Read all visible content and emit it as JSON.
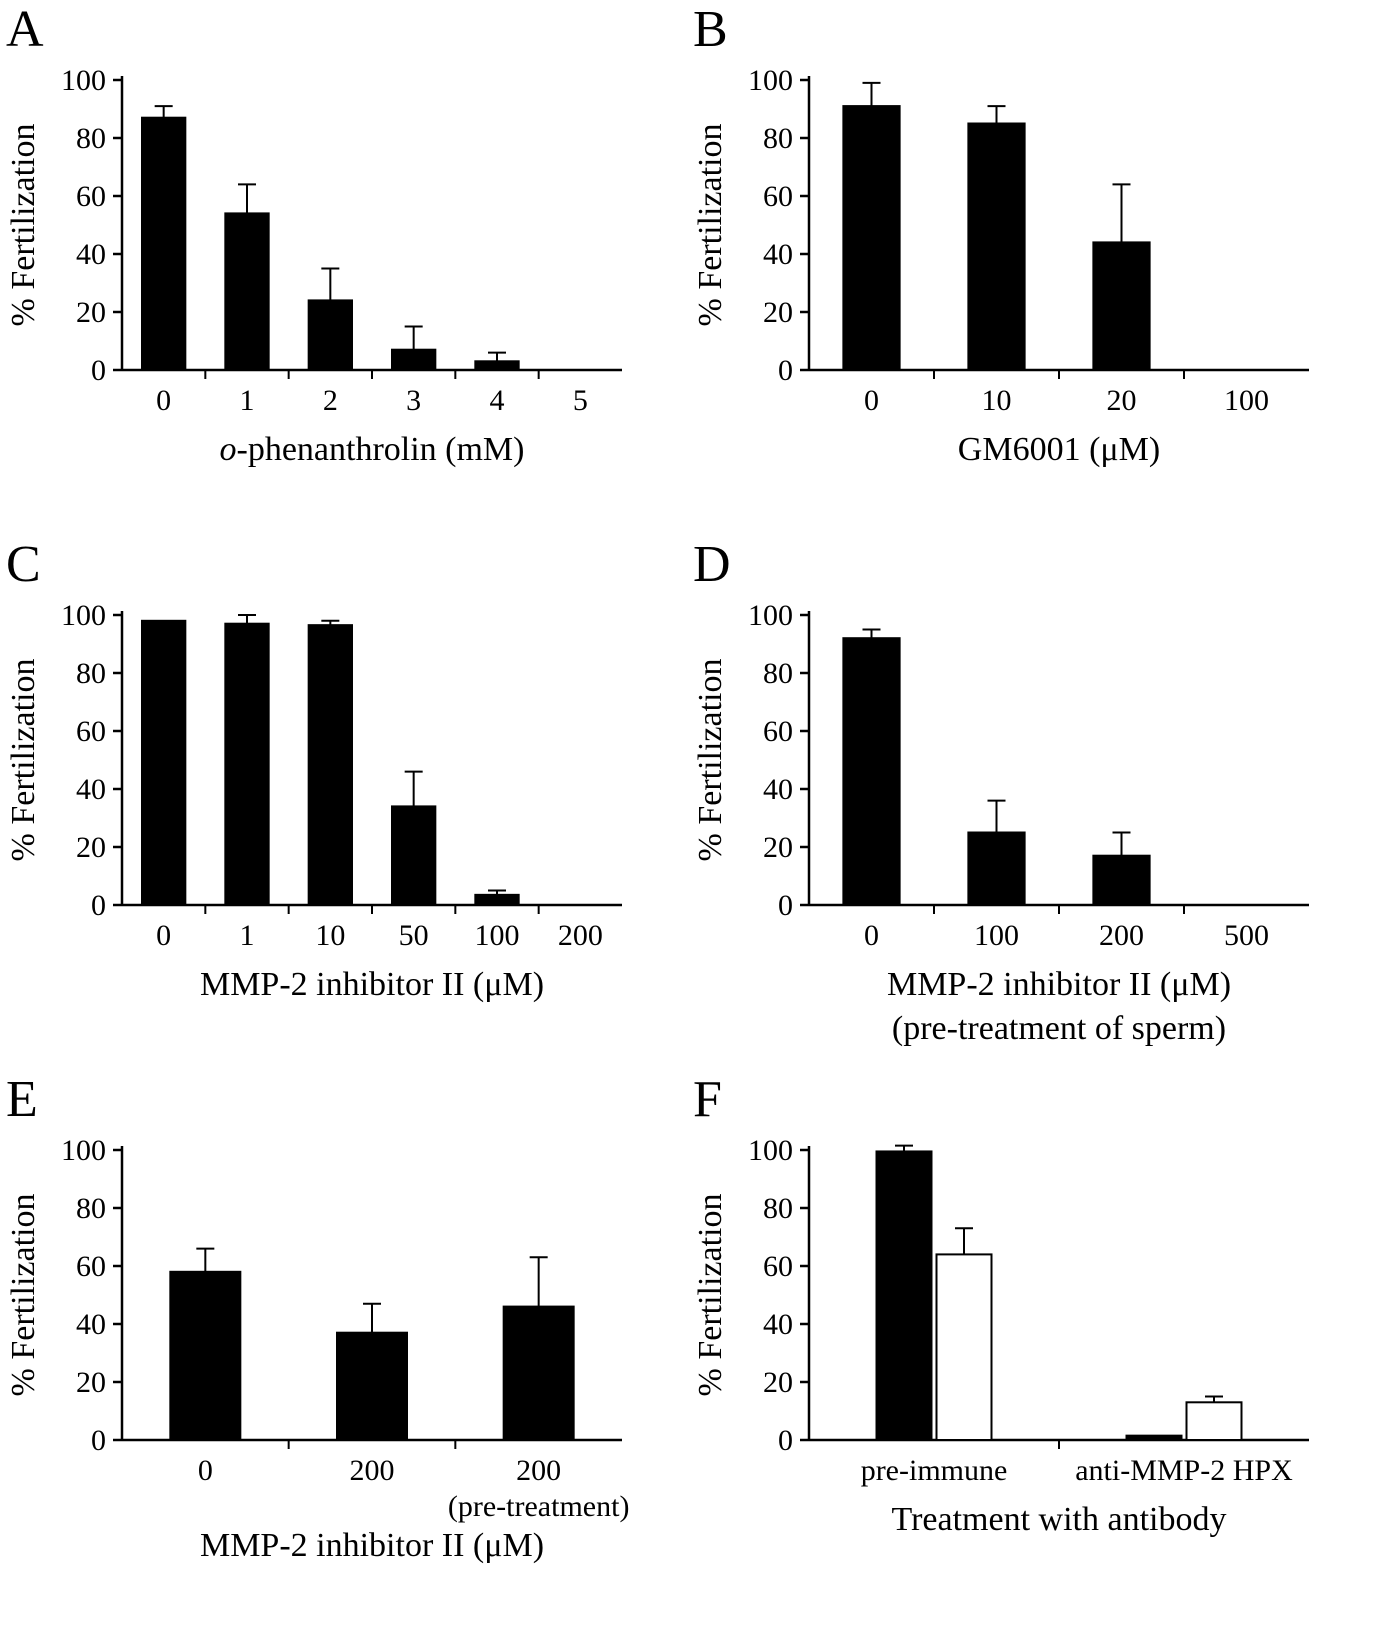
{
  "figure_title": "",
  "colors": {
    "bar_black": "#000000",
    "bar_white": "#ffffff",
    "axis": "#000000",
    "background": "#ffffff"
  },
  "chart_data": [
    {
      "id": "A",
      "panel_label": "A",
      "type": "bar",
      "categories": [
        "0",
        "1",
        "2",
        "3",
        "4",
        "5"
      ],
      "values": [
        87,
        54,
        24,
        7,
        3,
        0
      ],
      "errors": [
        4,
        10,
        11,
        8,
        3,
        0
      ],
      "xlabel": "o-phenanthrolin (mM)",
      "xlabel_parts": [
        {
          "text": "o",
          "italic": true
        },
        {
          "text": "-phenanthrolin (mM)",
          "italic": false
        }
      ],
      "ylabel": "% Fertilization",
      "ylim": [
        0,
        100
      ],
      "yticks": [
        0,
        20,
        40,
        60,
        80,
        100
      ],
      "bar_color": "#000000",
      "bar_frac": 0.52,
      "legend": "none",
      "grid": false
    },
    {
      "id": "B",
      "panel_label": "B",
      "type": "bar",
      "categories": [
        "0",
        "10",
        "20",
        "100"
      ],
      "values": [
        91,
        85,
        44,
        0
      ],
      "errors": [
        8,
        6,
        20,
        0
      ],
      "xlabel": "GM6001 (μM)",
      "ylabel": "% Fertilization",
      "ylim": [
        0,
        100
      ],
      "yticks": [
        0,
        20,
        40,
        60,
        80,
        100
      ],
      "bar_color": "#000000",
      "bar_frac": 0.45,
      "legend": "none",
      "grid": false
    },
    {
      "id": "C",
      "panel_label": "C",
      "type": "bar",
      "categories": [
        "0",
        "1",
        "10",
        "50",
        "100",
        "200"
      ],
      "values": [
        98,
        97,
        96.5,
        34,
        3.5,
        0
      ],
      "errors": [
        0,
        3,
        1.5,
        12,
        1.5,
        0
      ],
      "xlabel": "MMP-2 inhibitor II (μM)",
      "ylabel": "% Fertilization",
      "ylim": [
        0,
        100
      ],
      "yticks": [
        0,
        20,
        40,
        60,
        80,
        100
      ],
      "bar_color": "#000000",
      "bar_frac": 0.52,
      "legend": "none",
      "grid": false
    },
    {
      "id": "D",
      "panel_label": "D",
      "type": "bar",
      "categories": [
        "0",
        "100",
        "200",
        "500"
      ],
      "values": [
        92,
        25,
        17,
        0
      ],
      "errors": [
        3,
        11,
        8,
        0
      ],
      "xlabel": "MMP-2 inhibitor II (μM)",
      "xlabel2": "(pre-treatment of sperm)",
      "ylabel": "% Fertilization",
      "ylim": [
        0,
        100
      ],
      "yticks": [
        0,
        20,
        40,
        60,
        80,
        100
      ],
      "bar_color": "#000000",
      "bar_frac": 0.45,
      "legend": "none",
      "grid": false
    },
    {
      "id": "E",
      "panel_label": "E",
      "type": "bar",
      "categories": [
        "0",
        "200",
        "200"
      ],
      "category_sublabels": [
        "",
        "",
        "(pre-treatment)"
      ],
      "values": [
        58,
        37,
        46
      ],
      "errors": [
        8,
        10,
        17
      ],
      "xlabel": "MMP-2 inhibitor II (μM)",
      "ylabel": "% Fertilization",
      "ylim": [
        0,
        100
      ],
      "yticks": [
        0,
        20,
        40,
        60,
        80,
        100
      ],
      "bar_color": "#000000",
      "bar_frac": 0.42,
      "legend": "none",
      "grid": false
    },
    {
      "id": "F",
      "panel_label": "F",
      "type": "bar",
      "categories": [
        "pre-immune",
        "anti-MMP-2 HPX"
      ],
      "series": [
        {
          "name": "black",
          "color": "#000000",
          "values": [
            99.5,
            1.5
          ],
          "errors": [
            2,
            0
          ]
        },
        {
          "name": "white",
          "color": "#ffffff",
          "values": [
            64,
            13
          ],
          "errors": [
            9,
            2
          ]
        }
      ],
      "xlabel": "Treatment with antibody",
      "ylabel": "% Fertilization",
      "ylim": [
        0,
        100
      ],
      "yticks": [
        0,
        20,
        40,
        60,
        80,
        100
      ],
      "bar_frac": 0.22,
      "legend": "none",
      "grid": false
    }
  ]
}
